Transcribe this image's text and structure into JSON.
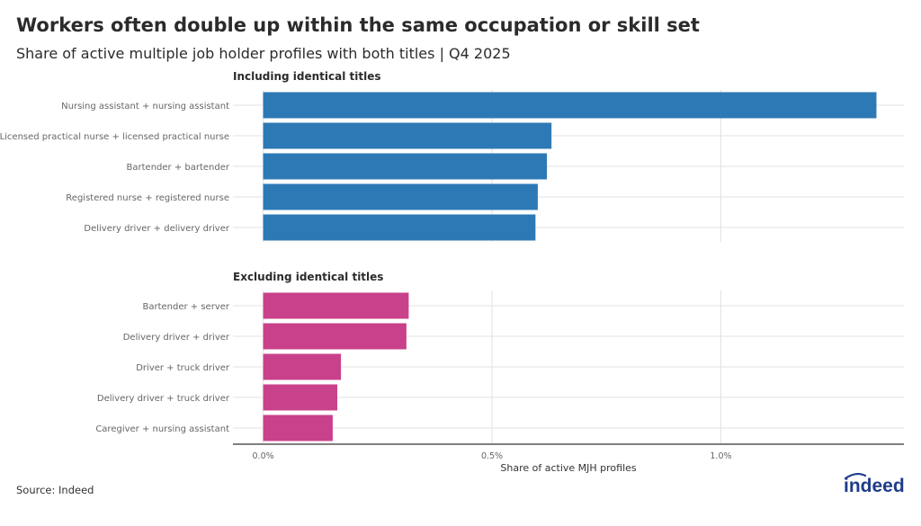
{
  "title": "Workers often double up within the same occupation or skill set",
  "subtitle": "Share of active multiple job holder profiles with both titles | Q4 2025",
  "source": "Source: Indeed",
  "logo_text": "indeed",
  "colors": {
    "including": "#2d79b5",
    "excluding": "#c9418a",
    "grid": "#e1e1e1",
    "axis": "#333333",
    "tick_label": "#666666"
  },
  "chart_data": {
    "type": "bar",
    "orientation": "horizontal",
    "xlabel": "Share of active MJH profiles",
    "xlim": [
      -0.066,
      1.4
    ],
    "xticks": [
      0.0,
      0.5,
      1.0
    ],
    "xtick_labels": [
      "0.0%",
      "0.5%",
      "1.0%"
    ],
    "grid": true,
    "panels": [
      {
        "title": "Including identical titles",
        "color": "#2d79b5",
        "categories": [
          "Nursing assistant + nursing assistant",
          "Licensed practical nurse + licensed practical nurse",
          "Bartender + bartender",
          "Registered nurse + registered nurse",
          "Delivery driver + delivery driver"
        ],
        "values": [
          1.34,
          0.63,
          0.62,
          0.6,
          0.595
        ]
      },
      {
        "title": "Excluding identical titles",
        "color": "#c9418a",
        "categories": [
          "Bartender + server",
          "Delivery driver + driver",
          "Driver + truck driver",
          "Delivery driver + truck driver",
          "Caregiver + nursing assistant"
        ],
        "values": [
          0.318,
          0.313,
          0.17,
          0.162,
          0.152
        ]
      }
    ]
  }
}
